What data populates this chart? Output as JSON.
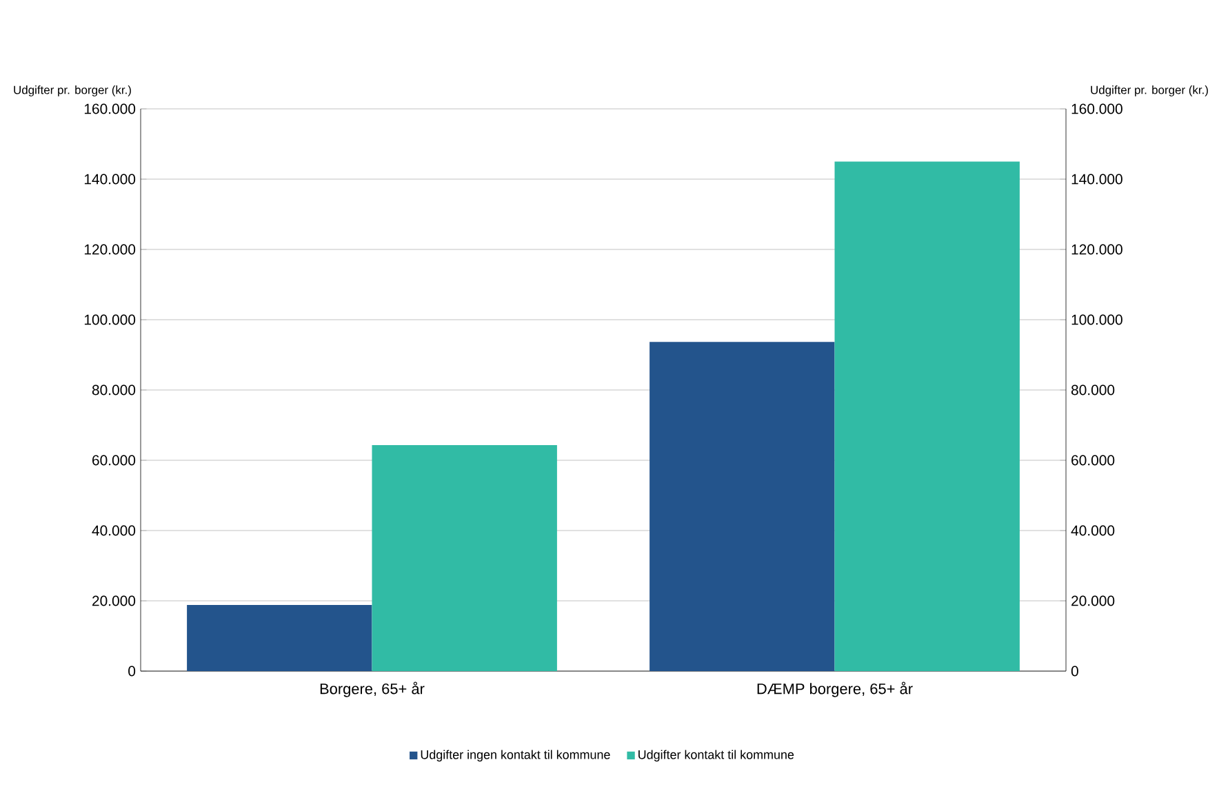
{
  "chart_data": {
    "type": "bar",
    "ylabel": "Udgifter pr. borger (kr.)",
    "y2label": "Udgifter pr. borger (kr.)",
    "categories": [
      "Borgere, 65+ år",
      "DÆMP borgere, 65+ år"
    ],
    "series": [
      {
        "name": "Udgifter ingen kontakt til kommune",
        "color": "#23548c",
        "values": [
          18800,
          93700
        ]
      },
      {
        "name": "Udgifter kontakt til kommune",
        "color": "#31bba5",
        "values": [
          64300,
          145000
        ]
      }
    ],
    "ylim": [
      0,
      160000
    ],
    "yticks": [
      0,
      {
        "value": 20000,
        "label": "20.000"
      },
      {
        "value": 40000,
        "label": "40.000"
      },
      {
        "value": 60000,
        "label": "60.000"
      },
      {
        "value": 80000,
        "label": "80.000"
      },
      {
        "value": 100000,
        "label": "100.000"
      },
      {
        "value": 120000,
        "label": "120.000"
      },
      {
        "value": 140000,
        "label": "140.000"
      },
      {
        "value": 160000,
        "label": "160.000"
      }
    ],
    "y2lim": [
      0,
      160000
    ],
    "y2ticks": [
      0,
      {
        "value": 20000,
        "label": "20.000"
      },
      {
        "value": 40000,
        "label": "40.000"
      },
      {
        "value": 60000,
        "label": "60.000"
      },
      {
        "value": 80000,
        "label": "80.000"
      },
      {
        "value": 100000,
        "label": "100.000"
      },
      {
        "value": 120000,
        "label": "120.000"
      },
      {
        "value": 140000,
        "label": "140.000"
      },
      {
        "value": 160000,
        "label": "160.000"
      }
    ],
    "grid": "y",
    "legend": "bottom"
  }
}
